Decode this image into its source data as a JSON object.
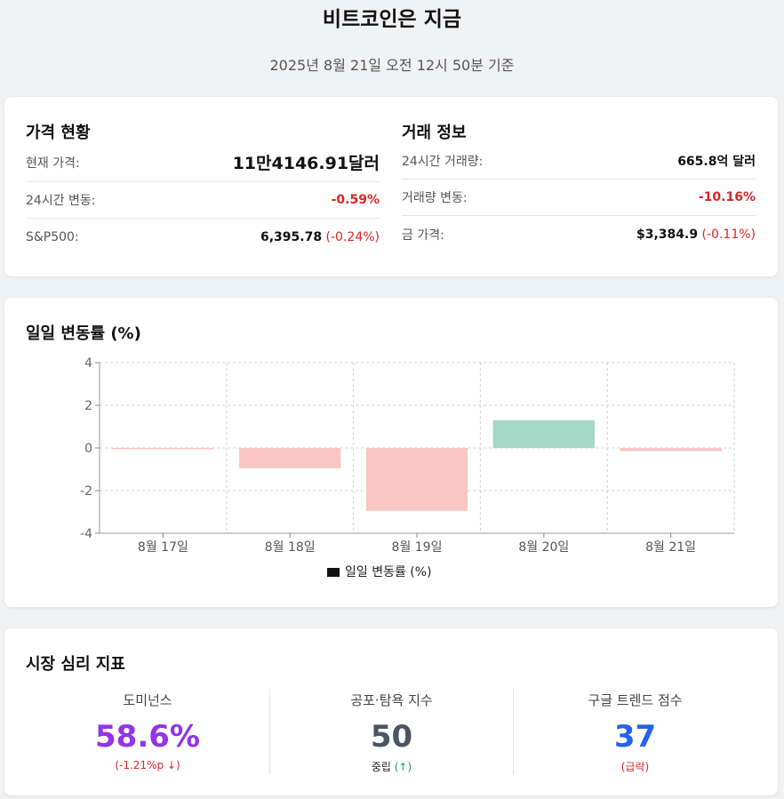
{
  "header": {
    "title": "비트코인은 지금",
    "subtitle": "2025년 8월 21일 오전 12시 50분 기준"
  },
  "price_status": {
    "heading": "가격 현황",
    "rows": [
      {
        "label": "현재 가격:",
        "value": "11만4146.91달러"
      },
      {
        "label": "24시간 변동:",
        "value": "-0.59%"
      },
      {
        "label": "S&P500:",
        "value": "6,395.78",
        "change": "(-0.24%)"
      }
    ]
  },
  "trade_info": {
    "heading": "거래 정보",
    "rows": [
      {
        "label": "24시간 거래량:",
        "value": "665.8억 달러"
      },
      {
        "label": "거래량 변동:",
        "value": "-10.16%"
      },
      {
        "label": "금 가격:",
        "value": "$3,384.9",
        "change": "(-0.11%)"
      }
    ]
  },
  "chart_section": {
    "heading": "일일 변동률 (%)"
  },
  "chart_data": {
    "type": "bar",
    "categories": [
      "8월 17일",
      "8월 18일",
      "8월 19일",
      "8월 20일",
      "8월 21일"
    ],
    "values": [
      -0.05,
      -0.95,
      -2.95,
      1.3,
      -0.15
    ],
    "series_name": "일일 변동률 (%)",
    "ylim": [
      -4,
      4
    ],
    "yticks": [
      4,
      2,
      0,
      -2,
      -4
    ],
    "grid": true,
    "legend_position": "bottom",
    "colors": {
      "positive": "#a3d8c6",
      "negative": "#f9c6c4",
      "legend": "#111111"
    }
  },
  "sentiment": {
    "heading": "시장 심리 지표",
    "metrics": [
      {
        "label": "도미넌스",
        "value": "58.6%",
        "sub": "(-1.21%p ↓)",
        "color": "#9333ea",
        "sub_color": "#dc2626"
      },
      {
        "label": "공포·탐욕 지수",
        "value": "50",
        "sub_main": "중립",
        "sub_arrow": "(↑)",
        "color": "#4b5563",
        "sub_color": "#16a34a"
      },
      {
        "label": "구글 트렌드 점수",
        "value": "37",
        "sub": "(급락)",
        "color": "#2563eb",
        "sub_color": "#dc2626"
      }
    ]
  }
}
